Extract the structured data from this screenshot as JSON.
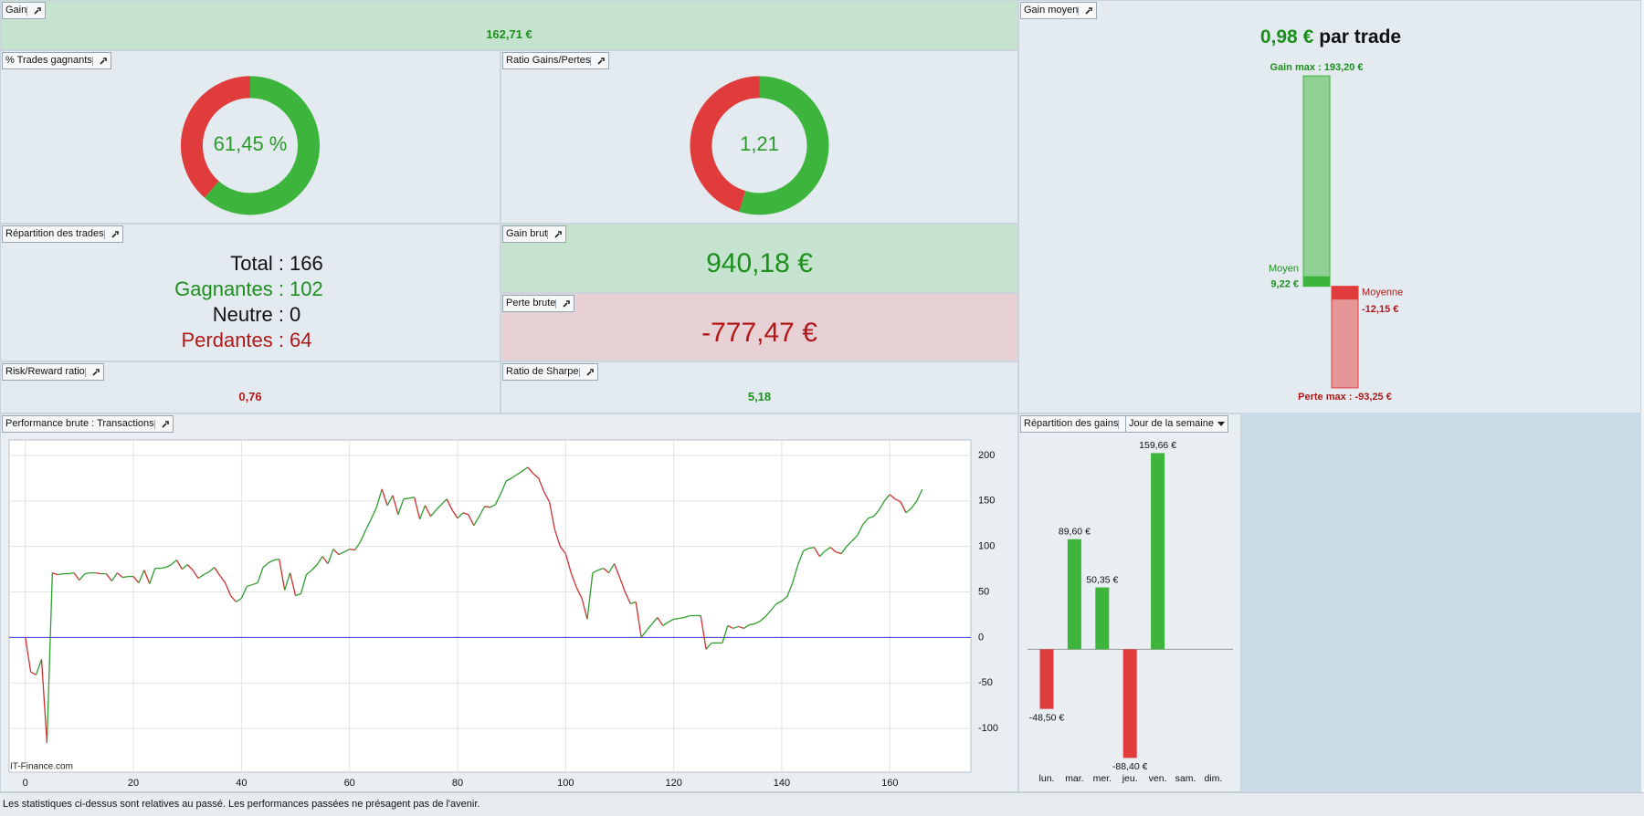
{
  "panels": {
    "gain": {
      "title": "Gain",
      "value": "162,71 €"
    },
    "trades": {
      "title": "Répartition des trades",
      "rows": [
        {
          "label": "Total :",
          "value": 166
        },
        {
          "label": "Gagnantes :",
          "value": 102
        },
        {
          "label": "Neutre :",
          "value": 0
        },
        {
          "label": "Perdantes :",
          "value": 64
        }
      ]
    },
    "gain_brut": {
      "title": "Gain brut",
      "value": "940,18 €"
    },
    "perte_brute": {
      "title": "Perte brute",
      "value": "-777,47 €"
    },
    "risk_reward": {
      "title": "Risk/Reward ratio",
      "value": "0,76"
    },
    "sharpe": {
      "title": "Ratio de Sharpe",
      "value": "5,18"
    },
    "footer": "Les statistiques ci-dessus sont relatives au passé. Les performances passées ne présagent pas de l'avenir."
  },
  "chart_data": [
    {
      "type": "donut",
      "title": "% Trades gagnants",
      "values": [
        102,
        64
      ],
      "colors": [
        "#3db53d",
        "#e03c3c"
      ],
      "center_label": "61,45 %"
    },
    {
      "type": "donut",
      "title": "Ratio Gains/Pertes",
      "values": [
        940.18,
        777.47
      ],
      "colors": [
        "#3db53d",
        "#e03c3c"
      ],
      "center_label": "1,21"
    },
    {
      "type": "range_bar",
      "title": "Gain moyen",
      "headline_value": "0,98 €",
      "headline_unit": "par trade",
      "values": [
        193.2,
        -93.25
      ],
      "value_labels": [
        "Gain max : 193,20 €",
        "Perte max : -93,25 €"
      ],
      "averages": [
        9.22,
        -12.15
      ],
      "average_names": [
        "Moyen",
        "Moyenne"
      ],
      "average_labels": [
        "9,22 €",
        "-12,15 €"
      ],
      "colors": [
        "#8fd192",
        "#e59696"
      ],
      "average_colors": [
        "#3db53d",
        "#e03c3c"
      ],
      "ylim": [
        -100,
        200
      ]
    },
    {
      "type": "line",
      "title": "Performance brute : Transactions",
      "watermark": "IT-Finance.com",
      "values": [
        0,
        -38,
        -41,
        -24,
        -116,
        71,
        69,
        70,
        70,
        71,
        63,
        70,
        71,
        71,
        70,
        70,
        62,
        71,
        66,
        67,
        67,
        60,
        74,
        59,
        76,
        76,
        77,
        80,
        85,
        75,
        80,
        74,
        65,
        69,
        72,
        77,
        68,
        60,
        46,
        39,
        43,
        56,
        58,
        60,
        77,
        82,
        85,
        86,
        52,
        71,
        46,
        48,
        69,
        74,
        80,
        89,
        81,
        97,
        91,
        94,
        97,
        96,
        105,
        118,
        130,
        143,
        163,
        145,
        156,
        135,
        152,
        153,
        154,
        130,
        145,
        133,
        140,
        146,
        152,
        140,
        131,
        137,
        135,
        123,
        133,
        144,
        143,
        146,
        158,
        172,
        175,
        179,
        183,
        187,
        180,
        175,
        160,
        149,
        118,
        100,
        92,
        71,
        55,
        43,
        20,
        71,
        74,
        76,
        71,
        81,
        66,
        50,
        37,
        39,
        0,
        8,
        15,
        22,
        13,
        17,
        20,
        21,
        22,
        24,
        24,
        24,
        -13,
        -6,
        -6,
        -6,
        13,
        10,
        12,
        10,
        14,
        15,
        18,
        23,
        30,
        37,
        40,
        45,
        60,
        80,
        95,
        98,
        99,
        89,
        95,
        99,
        94,
        92,
        100,
        106,
        112,
        124,
        131,
        133,
        140,
        150,
        157,
        152,
        149,
        137,
        142,
        150,
        162.71
      ],
      "up_color": "#2e9e2e",
      "down_color": "#d03030",
      "reference_color": "#3a3acc",
      "xlim": [
        -3,
        175
      ],
      "xticks": [
        0,
        20,
        40,
        60,
        80,
        100,
        120,
        140,
        160
      ],
      "ylim": [
        -148,
        217
      ],
      "yticks": [
        -100,
        -50,
        0,
        50,
        100,
        150,
        200
      ],
      "grid": true
    },
    {
      "type": "bar",
      "title": "Répartition des gains",
      "selector": "Jour de la semaine",
      "categories": [
        "lun.",
        "mar.",
        "mer.",
        "jeu.",
        "ven.",
        "sam.",
        "dim."
      ],
      "values": [
        -48.5,
        89.6,
        50.35,
        -88.4,
        159.66,
        null,
        null
      ],
      "value_labels": [
        "-48,50 €",
        "89,60 €",
        "50,35 €",
        "-88,40 €",
        "159,66 €",
        null,
        null
      ],
      "positive_color": "#3db53d",
      "negative_color": "#e03c3c",
      "ylim": [
        -100,
        180
      ]
    }
  ]
}
